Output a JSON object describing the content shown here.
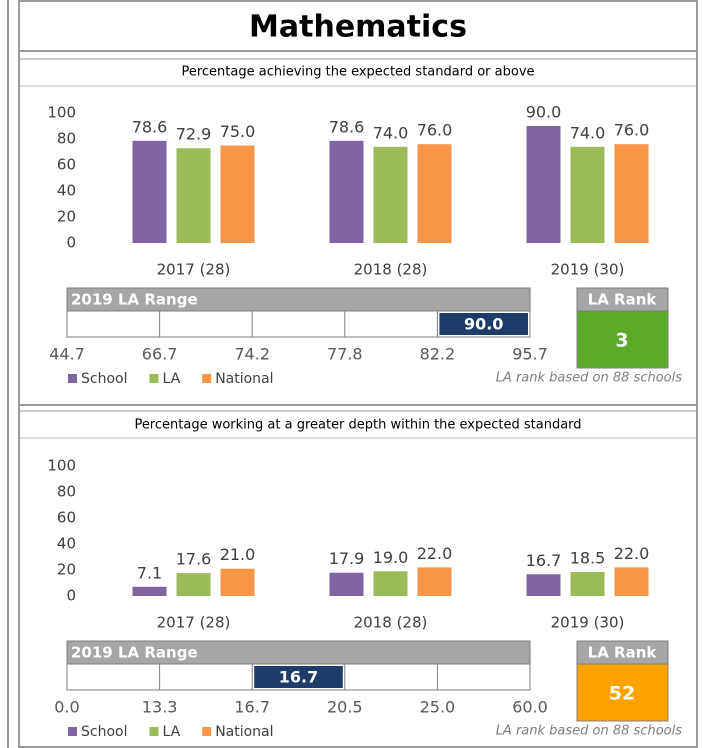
{
  "title": "Mathematics",
  "chart_data": [
    {
      "type": "bar",
      "subtitle": "Percentage achieving the expected standard or above",
      "categories": [
        "2017 (28)",
        "2018 (28)",
        "2019 (30)"
      ],
      "series": [
        {
          "name": "School",
          "color": "#8064a2",
          "values": [
            78.6,
            78.6,
            90
          ],
          "value_labels": [
            "78.6",
            "78.6",
            "90.0"
          ]
        },
        {
          "name": "LA",
          "color": "#9bbb59",
          "values": [
            72.9,
            74,
            74
          ],
          "value_labels": [
            "72.9",
            "74.0",
            "74.0"
          ]
        },
        {
          "name": "National",
          "color": "#f79646",
          "values": [
            75,
            76,
            76
          ],
          "value_labels": [
            "75.0",
            "76.0",
            "76.0"
          ]
        }
      ],
      "ylim": [
        0,
        100
      ],
      "yticks": [
        0,
        20,
        40,
        60,
        80,
        100
      ],
      "la_range": {
        "title": "2019 LA Range",
        "ticks": [
          44.7,
          66.7,
          74.2,
          77.8,
          82.2,
          95.7
        ],
        "school": {
          "value": 90,
          "label": "90.0"
        }
      },
      "la_rank": {
        "title": "LA Rank",
        "value": 3,
        "color": "#5aab2a",
        "note": "LA rank based on 88 schools"
      }
    },
    {
      "type": "bar",
      "subtitle": "Percentage working at a greater depth within the expected standard",
      "categories": [
        "2017 (28)",
        "2018 (28)",
        "2019 (30)"
      ],
      "series": [
        {
          "name": "School",
          "color": "#8064a2",
          "values": [
            7.1,
            17.9,
            16.7
          ]
        },
        {
          "name": "LA",
          "color": "#9bbb59",
          "values": [
            17.6,
            19,
            18.5
          ],
          "value_labels": [
            "17.6",
            "19.0",
            "18.5"
          ]
        },
        {
          "name": "National",
          "color": "#f79646",
          "values": [
            21,
            22,
            22
          ],
          "value_labels": [
            "21.0",
            "22.0",
            "22.0"
          ]
        }
      ],
      "ylim": [
        0,
        100
      ],
      "yticks": [
        0,
        20,
        40,
        60,
        80,
        100
      ],
      "la_range": {
        "title": "2019 LA Range",
        "ticks": [
          {
            "value": 0,
            "label": "0.0"
          },
          13.3,
          16.7,
          20.5,
          {
            "value": 25,
            "label": "25.0"
          },
          {
            "value": 60,
            "label": "60.0"
          }
        ],
        "school": {
          "value": 16.7,
          "label": "16.7"
        }
      },
      "la_rank": {
        "title": "LA Rank",
        "value": 52,
        "color": "#ffa200",
        "note": "LA rank based on 88 schools"
      }
    }
  ]
}
